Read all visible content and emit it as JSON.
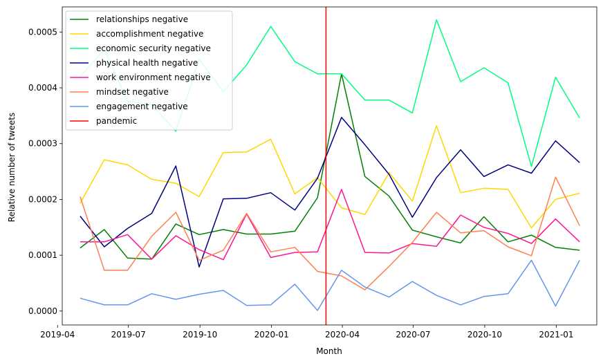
{
  "chart_data": {
    "type": "line",
    "title": "",
    "xlabel": "Month",
    "ylabel": "Relative number of tweets",
    "xlim": [
      "2019-04-07",
      "2021-02-22"
    ],
    "ylim": [
      -2.5e-05,
      0.000545
    ],
    "x_ticks": [
      "2019-04-01",
      "2019-07-01",
      "2019-10-01",
      "2020-01-01",
      "2020-04-01",
      "2020-07-01",
      "2020-10-01",
      "2021-01-01"
    ],
    "x_tick_labels": [
      "2019-04",
      "2019-07",
      "2019-10",
      "2020-01",
      "2020-04",
      "2020-07",
      "2020-10",
      "2021-01"
    ],
    "y_ticks": [
      0.0,
      0.0001,
      0.0002,
      0.0003,
      0.0004,
      0.0005
    ],
    "y_tick_labels": [
      "0.0000",
      "0.0001",
      "0.0002",
      "0.0003",
      "0.0004",
      "0.0005"
    ],
    "legend_position": "top-left",
    "x": [
      "2019-04-30",
      "2019-05-31",
      "2019-06-30",
      "2019-07-31",
      "2019-08-31",
      "2019-09-30",
      "2019-10-31",
      "2019-11-30",
      "2019-12-31",
      "2020-01-31",
      "2020-02-29",
      "2020-03-31",
      "2020-04-30",
      "2020-05-31",
      "2020-06-30",
      "2020-07-31",
      "2020-08-31",
      "2020-09-30",
      "2020-10-31",
      "2020-11-30",
      "2020-12-31",
      "2021-01-31"
    ],
    "series": [
      {
        "name": "relationships negative",
        "color": "#008000",
        "values": [
          0.000113,
          0.000146,
          9.5e-05,
          9.3e-05,
          0.000156,
          0.000137,
          0.000146,
          0.000138,
          0.000138,
          0.000143,
          0.000203,
          0.000425,
          0.000241,
          0.000206,
          0.000145,
          0.000133,
          0.000122,
          0.000169,
          0.000124,
          0.000136,
          0.000114,
          0.000109
        ]
      },
      {
        "name": "accomplishment negative",
        "color": "#FFD700",
        "values": [
          0.000193,
          0.000271,
          0.000262,
          0.000236,
          0.000229,
          0.000205,
          0.000284,
          0.000285,
          0.000308,
          0.00021,
          0.000239,
          0.000185,
          0.000173,
          0.000248,
          0.000197,
          0.000332,
          0.000212,
          0.00022,
          0.000218,
          0.000149,
          0.0002,
          0.000211
        ]
      },
      {
        "name": "economic security negative",
        "color": "#00FF7F",
        "values": [
          0.00042,
          0.000469,
          0.000376,
          0.00037,
          0.000322,
          0.000451,
          0.000393,
          0.000441,
          0.00051,
          0.000447,
          0.000425,
          0.000425,
          0.000378,
          0.000378,
          0.000355,
          0.000522,
          0.000411,
          0.000436,
          0.000409,
          0.000259,
          0.000419,
          0.000346
        ]
      },
      {
        "name": "physical health negative",
        "color": "#000080",
        "values": [
          0.00017,
          0.000115,
          0.000148,
          0.000175,
          0.00026,
          7.9e-05,
          0.000201,
          0.000202,
          0.000212,
          0.000181,
          0.000238,
          0.000347,
          0.000298,
          0.000245,
          0.000168,
          0.000239,
          0.000289,
          0.000241,
          0.000262,
          0.000247,
          0.000305,
          0.000266
        ]
      },
      {
        "name": "work environment negative",
        "color": "#FF1493",
        "values": [
          0.000124,
          0.000124,
          0.000137,
          9.3e-05,
          0.000135,
          0.00011,
          9.2e-05,
          0.000174,
          9.6e-05,
          0.000105,
          0.000106,
          0.000218,
          0.000105,
          0.000104,
          0.000121,
          0.000116,
          0.000172,
          0.00015,
          0.000139,
          0.000121,
          0.000165,
          0.000124
        ]
      },
      {
        "name": "mindset negative",
        "color": "#FF7F50",
        "values": [
          0.000205,
          7.3e-05,
          7.3e-05,
          0.000134,
          0.000177,
          9.1e-05,
          0.000109,
          0.000175,
          0.000106,
          0.000114,
          7.1e-05,
          6.3e-05,
          3.8e-05,
          8e-05,
          0.000123,
          0.000177,
          0.00014,
          0.000144,
          0.000115,
          9.9e-05,
          0.00024,
          0.000153
        ]
      },
      {
        "name": "engagement negative",
        "color": "#6495ED",
        "values": [
          2.3e-05,
          1.1e-05,
          1.1e-05,
          3.1e-05,
          2.1e-05,
          3e-05,
          3.7e-05,
          1e-05,
          1.1e-05,
          4.8e-05,
          1e-06,
          7.3e-05,
          4.3e-05,
          2.5e-05,
          5.3e-05,
          2.8e-05,
          1.1e-05,
          2.6e-05,
          3.1e-05,
          9.1e-05,
          9e-06,
          9.1e-05
        ]
      }
    ],
    "vlines": [
      {
        "name": "pandemic",
        "color": "#FF0000",
        "x": "2020-03-11"
      }
    ]
  }
}
